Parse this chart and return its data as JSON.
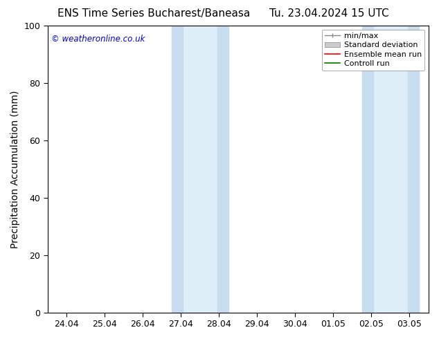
{
  "title_left": "ENS Time Series Bucharest/Baneasa",
  "title_right": "Tu. 23.04.2024 15 UTC",
  "ylabel": "Precipitation Accumulation (mm)",
  "watermark": "© weatheronline.co.uk",
  "watermark_color": "#0000cc",
  "background_color": "#ffffff",
  "plot_bg_color": "#ffffff",
  "ylim": [
    0,
    100
  ],
  "yticks": [
    0,
    20,
    40,
    60,
    80,
    100
  ],
  "xtick_labels": [
    "24.04",
    "25.04",
    "26.04",
    "27.04",
    "28.04",
    "29.04",
    "30.04",
    "01.05",
    "02.05",
    "03.05"
  ],
  "n_ticks": 10,
  "band_color_light": "#ddeef8",
  "band_color_dark": "#c8ddef",
  "legend_entries": [
    {
      "label": "min/max",
      "color": "#aaaaaa",
      "type": "minmax"
    },
    {
      "label": "Standard deviation",
      "color": "#cccccc",
      "type": "band"
    },
    {
      "label": "Ensemble mean run",
      "color": "#ff0000",
      "type": "line"
    },
    {
      "label": "Controll run",
      "color": "#007700",
      "type": "line"
    }
  ],
  "title_fontsize": 11,
  "tick_fontsize": 9,
  "ylabel_fontsize": 10,
  "legend_fontsize": 8
}
